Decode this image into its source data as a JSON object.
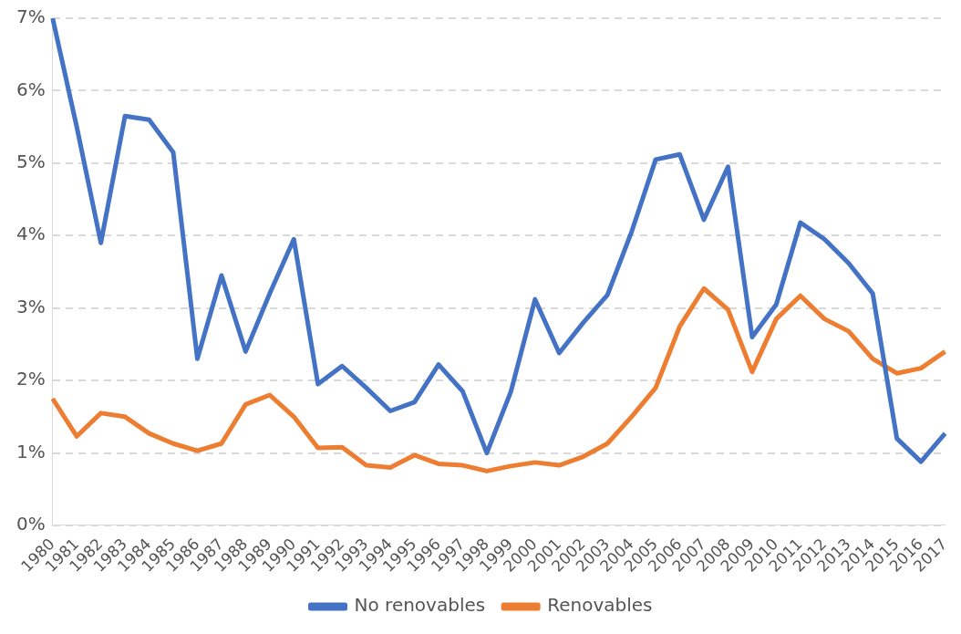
{
  "chart_data": {
    "type": "line",
    "categories": [
      "1980",
      "1981",
      "1982",
      "1983",
      "1984",
      "1985",
      "1986",
      "1987",
      "1988",
      "1989",
      "1990",
      "1991",
      "1992",
      "1993",
      "1994",
      "1995",
      "1996",
      "1997",
      "1998",
      "1999",
      "2000",
      "2001",
      "2002",
      "2003",
      "2004",
      "2005",
      "2006",
      "2007",
      "2008",
      "2009",
      "2010",
      "2011",
      "2012",
      "2013",
      "2014",
      "2015",
      "2016",
      "2017"
    ],
    "series": [
      {
        "name": "No renovables",
        "color": "#4472c4",
        "values": [
          7.0,
          5.5,
          3.9,
          5.65,
          5.6,
          5.15,
          2.3,
          3.45,
          2.4,
          3.2,
          3.95,
          1.95,
          2.2,
          1.9,
          1.58,
          1.7,
          2.22,
          1.85,
          1.0,
          1.85,
          3.12,
          2.38,
          2.8,
          3.18,
          4.05,
          5.05,
          5.12,
          4.22,
          4.95,
          2.6,
          3.05,
          4.18,
          3.95,
          3.62,
          3.2,
          1.2,
          0.88,
          1.27
        ]
      },
      {
        "name": "Renovables",
        "color": "#ed7d31",
        "values": [
          1.75,
          1.23,
          1.55,
          1.5,
          1.27,
          1.13,
          1.03,
          1.13,
          1.67,
          1.8,
          1.5,
          1.07,
          1.08,
          0.83,
          0.8,
          0.97,
          0.85,
          0.83,
          0.75,
          0.82,
          0.87,
          0.83,
          0.95,
          1.13,
          1.5,
          1.9,
          2.75,
          3.27,
          2.98,
          2.12,
          2.85,
          3.17,
          2.85,
          2.68,
          2.3,
          2.1,
          2.17,
          2.4
        ]
      }
    ],
    "ylim": [
      0,
      7
    ],
    "yticks": [
      {
        "value": 0,
        "label": "0%"
      },
      {
        "value": 1,
        "label": "1%"
      },
      {
        "value": 2,
        "label": "2%"
      },
      {
        "value": 3,
        "label": "3%"
      },
      {
        "value": 4,
        "label": "4%"
      },
      {
        "value": 5,
        "label": "5%"
      },
      {
        "value": 6,
        "label": "6%"
      },
      {
        "value": 7,
        "label": "7%"
      }
    ],
    "grid": "y",
    "legend": "bottom",
    "marker": "none",
    "line_style": "solid"
  }
}
